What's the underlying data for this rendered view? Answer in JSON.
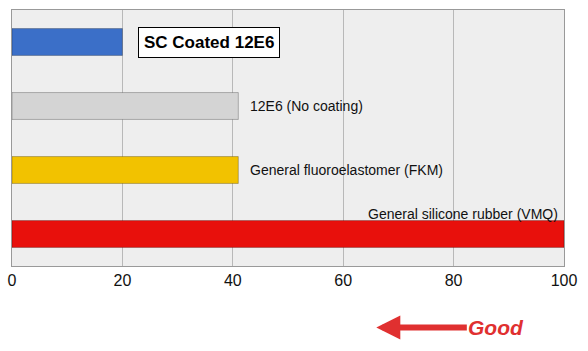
{
  "chart_data": {
    "type": "bar",
    "orientation": "horizontal",
    "categories": [
      "SC Coated 12E6",
      "12E6 (No coating)",
      "General fluoroelastomer (FKM)",
      "General silicone rubber (VMQ)"
    ],
    "values": [
      20,
      41,
      41,
      100
    ],
    "colors": [
      "#3b6fc8",
      "#d4d4d4",
      "#f2c200",
      "#e8100c"
    ],
    "xlim": [
      0,
      100
    ],
    "xticks": [
      0,
      20,
      40,
      60,
      80,
      100
    ],
    "grid": true,
    "tick_labels": "x",
    "annotations": [
      "Good"
    ]
  }
}
